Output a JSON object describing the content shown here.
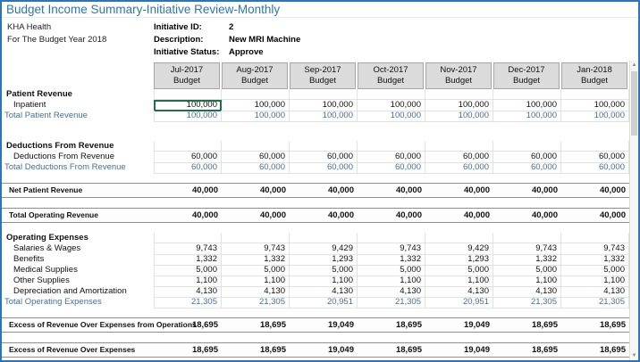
{
  "page": {
    "title": "Budget Income Summary-Initiative Review-Monthly"
  },
  "org": {
    "name": "KHA Health",
    "budget_year": "For The Budget Year 2018"
  },
  "initiative": {
    "id_label": "Initiative ID:",
    "id_value": "2",
    "description_label": "Description:",
    "description_value": "New MRI Machine",
    "status_label": "Initiative Status:",
    "status_value": "Approve"
  },
  "scrollbar": {
    "up_icon": "▲",
    "down_icon": "▼"
  },
  "colors": {
    "accent_blue": "#2E75B6",
    "subtotal_blue": "#44709D",
    "selection_green": "#1E7145",
    "header_bg": "#DBDBDB",
    "grid_line": "#E2E2E2",
    "summary_line": "#8F8F8F"
  },
  "table": {
    "columns": [
      {
        "month": "Jul-2017",
        "sub": "Budget"
      },
      {
        "month": "Aug-2017",
        "sub": "Budget"
      },
      {
        "month": "Sep-2017",
        "sub": "Budget"
      },
      {
        "month": "Oct-2017",
        "sub": "Budget"
      },
      {
        "month": "Nov-2017",
        "sub": "Budget"
      },
      {
        "month": "Dec-2017",
        "sub": "Budget"
      },
      {
        "month": "Jan-2018",
        "sub": "Budget"
      }
    ],
    "rows": [
      {
        "type": "section",
        "label": "Patient Revenue",
        "values": [
          "",
          "",
          "",
          "",
          "",
          "",
          ""
        ]
      },
      {
        "type": "detail",
        "label": "Inpatient",
        "selected_col": 0,
        "values": [
          "100,000",
          "100,000",
          "100,000",
          "100,000",
          "100,000",
          "100,000",
          "100,000"
        ]
      },
      {
        "type": "subtotal",
        "label": "Total Patient Revenue",
        "values": [
          "100,000",
          "100,000",
          "100,000",
          "100,000",
          "100,000",
          "100,000",
          "100,000"
        ]
      },
      {
        "type": "blank"
      },
      {
        "type": "blank"
      },
      {
        "type": "section",
        "label": "Deductions From Revenue",
        "values": [
          "",
          "",
          "",
          "",
          "",
          "",
          ""
        ]
      },
      {
        "type": "detail",
        "label": "Deductions From Revenue",
        "values": [
          "60,000",
          "60,000",
          "60,000",
          "60,000",
          "60,000",
          "60,000",
          "60,000"
        ]
      },
      {
        "type": "subtotal",
        "label": "Total Deductions From Revenue",
        "values": [
          "60,000",
          "60,000",
          "60,000",
          "60,000",
          "60,000",
          "60,000",
          "60,000"
        ]
      },
      {
        "type": "blank"
      },
      {
        "type": "summary",
        "label": "Net Patient Revenue",
        "values": [
          "40,000",
          "40,000",
          "40,000",
          "40,000",
          "40,000",
          "40,000",
          "40,000"
        ]
      },
      {
        "type": "blank"
      },
      {
        "type": "summary",
        "label": "Total Operating Revenue",
        "values": [
          "40,000",
          "40,000",
          "40,000",
          "40,000",
          "40,000",
          "40,000",
          "40,000"
        ]
      },
      {
        "type": "blank"
      },
      {
        "type": "section",
        "label": "Operating Expenses",
        "values": [
          "",
          "",
          "",
          "",
          "",
          "",
          ""
        ]
      },
      {
        "type": "detail",
        "label": "Salaries & Wages",
        "values": [
          "9,743",
          "9,743",
          "9,429",
          "9,743",
          "9,429",
          "9,743",
          "9,743"
        ]
      },
      {
        "type": "detail",
        "label": "Benefits",
        "values": [
          "1,332",
          "1,332",
          "1,293",
          "1,332",
          "1,293",
          "1,332",
          "1,332"
        ]
      },
      {
        "type": "detail",
        "label": "Medical Supplies",
        "values": [
          "5,000",
          "5,000",
          "5,000",
          "5,000",
          "5,000",
          "5,000",
          "5,000"
        ]
      },
      {
        "type": "detail",
        "label": "Other Supplies",
        "values": [
          "1,100",
          "1,100",
          "1,100",
          "1,100",
          "1,100",
          "1,100",
          "1,100"
        ]
      },
      {
        "type": "detail",
        "label": "Depreciation and Amortization",
        "values": [
          "4,130",
          "4,130",
          "4,130",
          "4,130",
          "4,130",
          "4,130",
          "4,130"
        ]
      },
      {
        "type": "subtotal",
        "label": "Total Operating Expenses",
        "values": [
          "21,305",
          "21,305",
          "20,951",
          "21,305",
          "20,951",
          "21,305",
          "21,305"
        ]
      },
      {
        "type": "blank"
      },
      {
        "type": "summary",
        "label": "Excess of Revenue Over Expenses from Operations",
        "values": [
          "18,695",
          "18,695",
          "19,049",
          "18,695",
          "19,049",
          "18,695",
          "18,695"
        ]
      },
      {
        "type": "blank"
      },
      {
        "type": "summary",
        "label": "Excess of Revenue Over Expenses",
        "values": [
          "18,695",
          "18,695",
          "19,049",
          "18,695",
          "19,049",
          "18,695",
          "18,695"
        ]
      }
    ]
  }
}
